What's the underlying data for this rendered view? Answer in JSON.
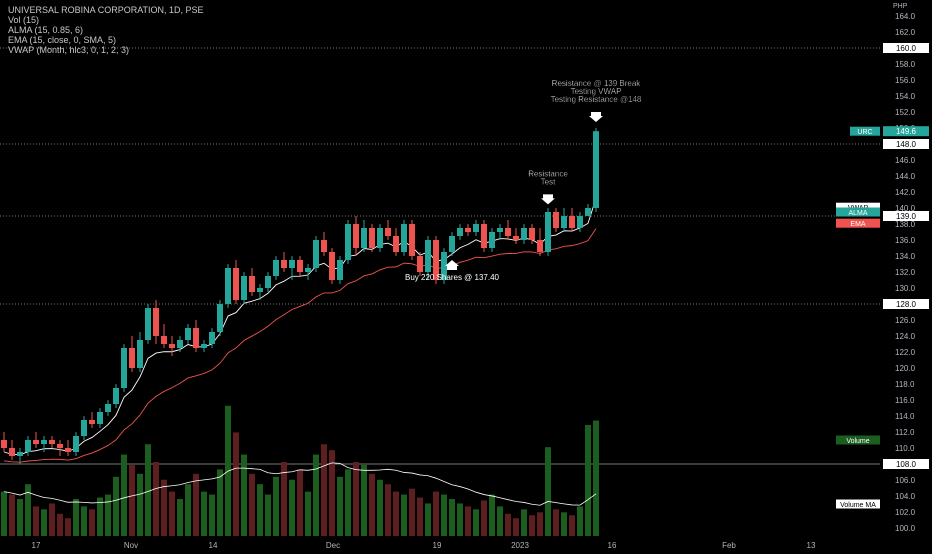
{
  "legend": {
    "title": "UNIVERSAL ROBINA CORPORATION, 1D, PSE",
    "vol": "Vol (15)",
    "alma": "ALMA (15, 0.85, 6)",
    "ema": "EMA (15, close, 0, SMA, 5)",
    "vwap": "VWAP (Month, hlc3, 0, 1, 2, 3)"
  },
  "currency": "PHP",
  "colors": {
    "background": "#000000",
    "up": "#26a69a",
    "down": "#ef5350",
    "vol_up": "#1b5e20",
    "vol_down": "#5d1f1f",
    "vwap_line": "#ffffff",
    "ema_line": "#ef5350",
    "alma_line": "#ffffff",
    "hline": "#9e9e9e",
    "axis_text": "#b2b5be"
  },
  "chart_data": {
    "type": "candlestick",
    "price_axis": {
      "range": [
        99,
        165
      ],
      "ticks": [
        100,
        102,
        104,
        106,
        108,
        110,
        112,
        114,
        116,
        118,
        120,
        122,
        124,
        126,
        128,
        130,
        132,
        134,
        136,
        138,
        140,
        142,
        144,
        146,
        148,
        150,
        152,
        154,
        156,
        158,
        160,
        162,
        164
      ],
      "tick_labels": [
        "100.0",
        "102.0",
        "104.0",
        "106.0",
        "108.0",
        "110.0",
        "112.0",
        "114.0",
        "116.0",
        "118.0",
        "120.0",
        "122.0",
        "124.0",
        "126.0",
        "128.0",
        "130.0",
        "132.0",
        "134.0",
        "136.0",
        "138.0",
        "140.0",
        "142.0",
        "144.0",
        "146.0",
        "148.0",
        "150.0",
        "152.0",
        "154.0",
        "156.0",
        "158.0",
        "160.0",
        "162.0",
        "164.0"
      ]
    },
    "time_axis": {
      "labels": [
        "17",
        "Nov",
        "14",
        "Dec",
        "19",
        "2023",
        "16",
        "Feb",
        "13"
      ]
    },
    "candles": [
      [
        111.0,
        112.0,
        109.5,
        110.0
      ],
      [
        110.0,
        111.0,
        108.5,
        109.0
      ],
      [
        109.0,
        110.0,
        108.0,
        109.5
      ],
      [
        109.5,
        111.5,
        109.0,
        111.0
      ],
      [
        111.0,
        112.0,
        110.0,
        110.5
      ],
      [
        110.5,
        111.5,
        109.5,
        111.0
      ],
      [
        111.0,
        111.5,
        110.0,
        110.5
      ],
      [
        110.5,
        111.0,
        109.0,
        110.0
      ],
      [
        110.0,
        111.0,
        109.0,
        109.5
      ],
      [
        109.5,
        112.0,
        109.0,
        111.5
      ],
      [
        111.5,
        114.0,
        111.0,
        113.5
      ],
      [
        113.5,
        114.5,
        112.5,
        113.0
      ],
      [
        113.0,
        115.0,
        112.5,
        114.5
      ],
      [
        114.5,
        116.0,
        114.0,
        115.5
      ],
      [
        115.5,
        118.0,
        115.0,
        117.5
      ],
      [
        117.5,
        123.0,
        117.0,
        122.5
      ],
      [
        122.5,
        124.0,
        119.5,
        120.0
      ],
      [
        120.0,
        124.5,
        119.5,
        123.5
      ],
      [
        123.5,
        128.0,
        123.0,
        127.5
      ],
      [
        127.5,
        128.5,
        123.0,
        124.0
      ],
      [
        124.0,
        125.5,
        122.5,
        123.0
      ],
      [
        123.0,
        124.0,
        121.5,
        122.5
      ],
      [
        122.5,
        124.0,
        122.0,
        123.5
      ],
      [
        123.5,
        125.5,
        123.0,
        125.0
      ],
      [
        125.0,
        126.0,
        122.0,
        122.5
      ],
      [
        122.5,
        123.5,
        122.0,
        123.0
      ],
      [
        123.0,
        125.0,
        122.5,
        124.5
      ],
      [
        124.5,
        128.5,
        124.0,
        128.0
      ],
      [
        128.0,
        133.0,
        127.5,
        132.5
      ],
      [
        132.5,
        133.5,
        128.0,
        128.5
      ],
      [
        128.5,
        132.0,
        128.0,
        131.5
      ],
      [
        131.5,
        132.5,
        129.0,
        129.5
      ],
      [
        129.5,
        130.5,
        128.5,
        130.0
      ],
      [
        130.0,
        132.0,
        129.5,
        131.5
      ],
      [
        131.5,
        134.0,
        131.0,
        133.5
      ],
      [
        133.5,
        134.5,
        132.0,
        132.5
      ],
      [
        132.5,
        134.0,
        131.0,
        133.5
      ],
      [
        133.5,
        134.0,
        131.5,
        132.0
      ],
      [
        132.0,
        133.0,
        131.0,
        132.5
      ],
      [
        132.5,
        136.5,
        132.0,
        136.0
      ],
      [
        136.0,
        137.0,
        134.0,
        134.5
      ],
      [
        134.5,
        135.0,
        130.5,
        131.0
      ],
      [
        131.0,
        134.0,
        130.5,
        133.5
      ],
      [
        133.5,
        138.5,
        133.0,
        138.0
      ],
      [
        138.0,
        139.0,
        134.0,
        135.0
      ],
      [
        135.0,
        138.5,
        134.5,
        137.5
      ],
      [
        137.5,
        138.0,
        134.5,
        135.0
      ],
      [
        135.0,
        138.0,
        134.5,
        137.5
      ],
      [
        137.5,
        138.5,
        136.0,
        136.5
      ],
      [
        136.5,
        137.5,
        134.0,
        134.5
      ],
      [
        134.5,
        138.5,
        134.0,
        138.0
      ],
      [
        138.0,
        138.5,
        133.5,
        134.0
      ],
      [
        134.0,
        134.5,
        131.5,
        132.0
      ],
      [
        132.0,
        136.5,
        131.0,
        136.0
      ],
      [
        136.0,
        136.5,
        130.5,
        131.0
      ],
      [
        131.0,
        135.0,
        130.5,
        134.5
      ],
      [
        134.5,
        137.0,
        134.0,
        136.5
      ],
      [
        136.5,
        138.0,
        136.0,
        137.5
      ],
      [
        137.5,
        138.0,
        136.5,
        137.0
      ],
      [
        137.0,
        138.5,
        136.5,
        138.0
      ],
      [
        138.0,
        138.5,
        134.5,
        135.0
      ],
      [
        135.0,
        137.5,
        134.5,
        137.0
      ],
      [
        137.0,
        138.0,
        136.0,
        137.5
      ],
      [
        137.5,
        138.5,
        136.0,
        136.5
      ],
      [
        136.5,
        137.5,
        135.5,
        136.0
      ],
      [
        136.0,
        138.0,
        135.5,
        137.5
      ],
      [
        137.5,
        138.0,
        135.5,
        136.0
      ],
      [
        136.0,
        137.5,
        134.0,
        134.5
      ],
      [
        134.5,
        140.0,
        134.0,
        139.5
      ],
      [
        139.5,
        140.0,
        137.0,
        137.5
      ],
      [
        137.5,
        140.0,
        137.0,
        139.0
      ],
      [
        139.0,
        140.0,
        137.0,
        137.5
      ],
      [
        137.5,
        139.5,
        137.0,
        139.0
      ],
      [
        139.0,
        140.5,
        139.0,
        140.0
      ],
      [
        140.0,
        150.0,
        139.5,
        149.6
      ]
    ],
    "volume": {
      "values": [
        30,
        28,
        25,
        35,
        20,
        18,
        22,
        15,
        12,
        25,
        20,
        18,
        26,
        28,
        40,
        55,
        48,
        42,
        62,
        50,
        38,
        30,
        25,
        35,
        42,
        30,
        28,
        45,
        88,
        70,
        55,
        42,
        35,
        28,
        40,
        50,
        38,
        45,
        30,
        55,
        62,
        58,
        40,
        45,
        50,
        48,
        42,
        38,
        35,
        30,
        28,
        32,
        26,
        22,
        30,
        28,
        25,
        22,
        20,
        18,
        24,
        28,
        20,
        15,
        12,
        18,
        14,
        16,
        60,
        18,
        16,
        14,
        20,
        75,
        78
      ],
      "up": [
        true,
        false,
        true,
        true,
        false,
        true,
        false,
        false,
        false,
        true,
        true,
        false,
        true,
        true,
        true,
        true,
        false,
        true,
        true,
        false,
        false,
        false,
        true,
        true,
        false,
        true,
        true,
        true,
        true,
        false,
        true,
        false,
        true,
        true,
        true,
        false,
        true,
        false,
        true,
        true,
        false,
        false,
        true,
        true,
        false,
        true,
        false,
        true,
        false,
        false,
        true,
        false,
        false,
        true,
        false,
        true,
        true,
        true,
        false,
        true,
        false,
        true,
        true,
        false,
        false,
        true,
        false,
        false,
        true,
        false,
        true,
        false,
        true,
        true,
        true
      ]
    },
    "annotations": [
      {
        "text": [
          "Resistance @ 139 Break",
          "Testing VWAP",
          "Testing Resistance @148"
        ],
        "price": 150.5,
        "index": 74,
        "arrow": "down"
      },
      {
        "text": [
          "Resistance",
          "Test"
        ],
        "price": 140.2,
        "index": 68,
        "arrow": "down"
      },
      {
        "text": [
          "Buy 220 Shares @ 137.40"
        ],
        "price": 133.5,
        "index": 56,
        "arrow": "up"
      }
    ],
    "hlines": [
      160.0,
      148.0,
      139.0,
      128.0,
      108.0
    ],
    "hline_labels": [
      "160.0",
      "148.0",
      "139.0",
      "128.0",
      "108.0"
    ],
    "price_labels": [
      {
        "text": "URC",
        "value": "149.6",
        "price": 149.6,
        "color": "#26a69a"
      },
      {
        "text": "VWAP",
        "value": "",
        "price": 140.1,
        "color": "#ffffff"
      },
      {
        "text": "ALMA",
        "value": "",
        "price": 139.5,
        "color": "#26a69a"
      },
      {
        "text": "EMA",
        "value": "",
        "price": 138.1,
        "color": "#ef5350"
      },
      {
        "text": "Volume",
        "value": "",
        "price": 111.0,
        "color": "#1b5e20"
      },
      {
        "text": "Volume MA",
        "value": "",
        "price": 103.0,
        "color": "#ffffff"
      }
    ]
  }
}
